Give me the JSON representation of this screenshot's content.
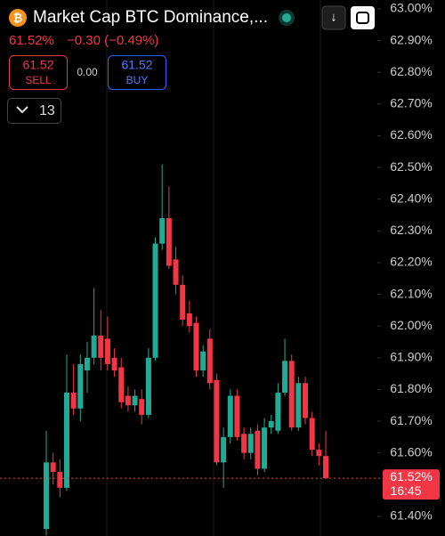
{
  "header": {
    "title": "Market Cap BTC Dominance,...",
    "price": "61.52%",
    "change": "−0.30 (−0.49%)",
    "sell_price": "61.52",
    "sell_label": "SELL",
    "spread": "0.00",
    "buy_price": "61.52",
    "buy_label": "BUY",
    "interval": "13"
  },
  "chart_data": {
    "type": "candlestick",
    "open": [
      61.36,
      61.57,
      61.54,
      61.49,
      61.79,
      61.74,
      61.86,
      61.9,
      61.97,
      61.96,
      61.9,
      61.87,
      61.78,
      61.75,
      61.77,
      61.72,
      61.9,
      62.26,
      62.34,
      62.21,
      62.13,
      62.04,
      62.01,
      61.86,
      61.96,
      61.83,
      61.57,
      61.65,
      61.78,
      61.66,
      61.6,
      61.67,
      61.55,
      61.68,
      61.67,
      61.79,
      61.89,
      61.68,
      61.82,
      61.71,
      61.61,
      61.59
    ],
    "high": [
      61.67,
      61.6,
      61.58,
      61.91,
      61.88,
      61.91,
      61.95,
      62.12,
      62.05,
      62.03,
      61.93,
      61.9,
      61.81,
      61.8,
      61.8,
      61.93,
      62.28,
      62.51,
      62.44,
      62.25,
      62.16,
      62.08,
      62.03,
      61.94,
      61.99,
      61.85,
      61.68,
      61.8,
      61.8,
      61.68,
      61.68,
      61.69,
      61.71,
      61.72,
      61.82,
      61.96,
      61.91,
      61.84,
      61.84,
      61.73,
      61.63,
      61.67
    ],
    "low": [
      61.34,
      61.5,
      61.46,
      61.48,
      61.72,
      61.7,
      61.79,
      61.88,
      61.86,
      61.86,
      61.84,
      61.74,
      61.73,
      61.73,
      61.69,
      61.71,
      61.89,
      62.24,
      62.18,
      62.1,
      62.0,
      61.98,
      61.84,
      61.84,
      61.8,
      61.56,
      61.49,
      61.63,
      61.64,
      61.58,
      61.58,
      61.53,
      61.54,
      61.66,
      61.66,
      61.78,
      61.67,
      61.67,
      61.69,
      61.59,
      61.56,
      61.52
    ],
    "close": [
      61.57,
      61.54,
      61.49,
      61.79,
      61.74,
      61.88,
      61.9,
      61.97,
      61.9,
      61.88,
      61.86,
      61.76,
      61.75,
      61.78,
      61.72,
      61.9,
      62.26,
      62.34,
      62.19,
      62.13,
      62.02,
      62.0,
      61.86,
      61.92,
      61.82,
      61.57,
      61.65,
      61.78,
      61.65,
      61.6,
      61.66,
      61.55,
      61.68,
      61.7,
      61.79,
      61.89,
      61.68,
      61.82,
      61.71,
      61.61,
      61.59,
      61.52
    ],
    "up_color": "#22ab94",
    "down_color": "#f23645",
    "ylim": [
      61.338,
      63.028
    ],
    "yticks": [
      {
        "value": 63,
        "label": "63.00%"
      },
      {
        "value": 62.9,
        "label": "62.90%"
      },
      {
        "value": 62.8,
        "label": "62.80%"
      },
      {
        "value": 62.7,
        "label": "62.70%"
      },
      {
        "value": 62.6,
        "label": "62.60%"
      },
      {
        "value": 62.5,
        "label": "62.50%"
      },
      {
        "value": 62.4,
        "label": "62.40%"
      },
      {
        "value": 62.3,
        "label": "62.30%"
      },
      {
        "value": 62.2,
        "label": "62.20%"
      },
      {
        "value": 62.1,
        "label": "62.10%"
      },
      {
        "value": 62,
        "label": "62.00%"
      },
      {
        "value": 61.9,
        "label": "61.90%"
      },
      {
        "value": 61.8,
        "label": "61.80%"
      },
      {
        "value": 61.7,
        "label": "61.70%"
      },
      {
        "value": 61.6,
        "label": "61.60%"
      },
      {
        "value": 61.4,
        "label": "61.40%"
      }
    ],
    "last_price": {
      "value": 61.52,
      "label": "61.52%"
    },
    "last_time": "16:45"
  }
}
